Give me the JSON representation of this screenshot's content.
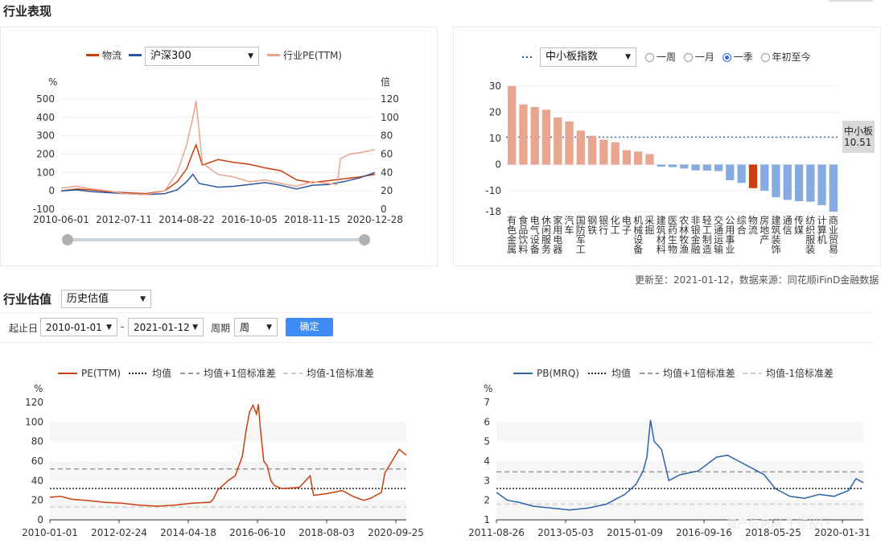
{
  "industry_performance": {
    "title": "行业表现",
    "left_chart": {
      "legend": {
        "series1": "物流",
        "series2_select": "沪深300",
        "series3": "行业PE(TTM)"
      }
    },
    "right_chart": {
      "legend_select": "中小板指数",
      "radios": [
        {
          "label": "一周",
          "selected": false
        },
        {
          "label": "一月",
          "selected": false
        },
        {
          "label": "一季",
          "selected": true
        },
        {
          "label": "年初至今",
          "selected": false
        }
      ],
      "ref_tag_name": "中小板",
      "ref_tag_value": "10.51"
    },
    "update_text": "更新至：2021-01-12，数据来源：同花顺iFinD金融数据"
  },
  "valuation": {
    "title": "行业估值",
    "mode_select": "历史估值",
    "filter": {
      "start_label": "起止日",
      "start_date": "2010-01-01",
      "dash": "-",
      "end_date": "2021-01-12",
      "period_label": "周期",
      "period_value": "周",
      "confirm": "确定"
    }
  },
  "watermark": "资产信息网 千际投行",
  "colors": {
    "logistics": "#c9400c",
    "hs300": "#2d57a0",
    "pe_line": "#e8a58f",
    "bar_pos": "#e8a58f",
    "bar_neg": "#86abe3",
    "bar_hi": "#c9400c",
    "pb_line": "#2d63aa"
  },
  "chart_data": [
    {
      "type": "line",
      "name": "industry-performance",
      "x_ticks": [
        "2010-06-01",
        "2012-07-11",
        "2014-08-22",
        "2016-10-05",
        "2018-11-15",
        "2020-12-28"
      ],
      "ylabel_left": "%",
      "ylabel_right": "倍",
      "ylim_left": [
        -100,
        500
      ],
      "ylim_right": [
        0,
        120
      ],
      "yticks_left": [
        500,
        400,
        300,
        200,
        100,
        0,
        -100
      ],
      "yticks_right": [
        120,
        100,
        80,
        60,
        40,
        20,
        0
      ],
      "series": [
        {
          "name": "物流",
          "axis": "left",
          "color": "#c9400c",
          "points": [
            [
              0,
              0
            ],
            [
              0.05,
              10
            ],
            [
              0.1,
              5
            ],
            [
              0.15,
              -5
            ],
            [
              0.2,
              -10
            ],
            [
              0.27,
              -15
            ],
            [
              0.33,
              0
            ],
            [
              0.37,
              50
            ],
            [
              0.4,
              120
            ],
            [
              0.42,
              210
            ],
            [
              0.43,
              250
            ],
            [
              0.45,
              140
            ],
            [
              0.5,
              170
            ],
            [
              0.55,
              155
            ],
            [
              0.6,
              145
            ],
            [
              0.65,
              125
            ],
            [
              0.7,
              110
            ],
            [
              0.75,
              60
            ],
            [
              0.8,
              45
            ],
            [
              0.85,
              55
            ],
            [
              0.9,
              65
            ],
            [
              0.95,
              75
            ],
            [
              1.0,
              90
            ]
          ]
        },
        {
          "name": "沪深300",
          "axis": "left",
          "color": "#2d57a0",
          "points": [
            [
              0,
              0
            ],
            [
              0.05,
              5
            ],
            [
              0.1,
              -5
            ],
            [
              0.15,
              -10
            ],
            [
              0.2,
              -15
            ],
            [
              0.27,
              -20
            ],
            [
              0.33,
              -15
            ],
            [
              0.37,
              5
            ],
            [
              0.4,
              50
            ],
            [
              0.42,
              90
            ],
            [
              0.44,
              40
            ],
            [
              0.5,
              20
            ],
            [
              0.55,
              25
            ],
            [
              0.6,
              35
            ],
            [
              0.65,
              45
            ],
            [
              0.7,
              30
            ],
            [
              0.75,
              10
            ],
            [
              0.8,
              30
            ],
            [
              0.85,
              35
            ],
            [
              0.9,
              50
            ],
            [
              0.95,
              70
            ],
            [
              1.0,
              100
            ]
          ]
        },
        {
          "name": "行业PE(TTM)",
          "axis": "right",
          "color": "#e8a58f",
          "points": [
            [
              0,
              23
            ],
            [
              0.05,
              25
            ],
            [
              0.1,
              22
            ],
            [
              0.15,
              20
            ],
            [
              0.2,
              17
            ],
            [
              0.27,
              16
            ],
            [
              0.33,
              20
            ],
            [
              0.37,
              40
            ],
            [
              0.4,
              70
            ],
            [
              0.42,
              100
            ],
            [
              0.43,
              118
            ],
            [
              0.45,
              50
            ],
            [
              0.5,
              38
            ],
            [
              0.55,
              35
            ],
            [
              0.6,
              30
            ],
            [
              0.65,
              32
            ],
            [
              0.7,
              28
            ],
            [
              0.75,
              25
            ],
            [
              0.8,
              30
            ],
            [
              0.85,
              28
            ],
            [
              0.88,
              27
            ],
            [
              0.89,
              55
            ],
            [
              0.92,
              60
            ],
            [
              0.96,
              62
            ],
            [
              1.0,
              65
            ]
          ]
        }
      ]
    },
    {
      "type": "bar",
      "name": "industry-ranking",
      "categories": [
        "有色金属",
        "食品饮料",
        "电气设备",
        "休闲服务",
        "家用电器",
        "汽车",
        "国防军工",
        "钢铁",
        "银行",
        "化工",
        "电子",
        "机械设备",
        "采掘",
        "建筑材料",
        "医药生物",
        "农林牧渔",
        "非银金融",
        "轻工制造",
        "交通运输",
        "公用事业",
        "综合",
        "物流",
        "房地产",
        "建筑装饰",
        "通信",
        "传媒",
        "纺织服装",
        "计算机",
        "商业贸易"
      ],
      "category_labels": [
        [
          "有",
          "色",
          "金",
          "属"
        ],
        [
          "食",
          "品",
          "饮",
          "料"
        ],
        [
          "电",
          "气",
          "设",
          "备"
        ],
        [
          "休",
          "闲",
          "服",
          "务"
        ],
        [
          "家",
          "用",
          "电",
          "器"
        ],
        [
          "汽",
          "车"
        ],
        [
          "国",
          "防",
          "军",
          "工"
        ],
        [
          "钢",
          "铁"
        ],
        [
          "银",
          "行"
        ],
        [
          "化",
          "工"
        ],
        [
          "电",
          "子"
        ],
        [
          "机",
          "械",
          "设",
          "备"
        ],
        [
          "采",
          "掘"
        ],
        [
          "建",
          "筑",
          "材",
          "料"
        ],
        [
          "医",
          "药",
          "生",
          "物"
        ],
        [
          "农",
          "林",
          "牧",
          "渔"
        ],
        [
          "非",
          "银",
          "金",
          "融"
        ],
        [
          "轻",
          "工",
          "制",
          "造"
        ],
        [
          "交",
          "通",
          "运",
          "输"
        ],
        [
          "公",
          "用",
          "事",
          "业"
        ],
        [
          "综",
          "合"
        ],
        [
          "物",
          "流"
        ],
        [
          "房",
          "地",
          "产"
        ],
        [
          "建",
          "筑",
          "装",
          "饰"
        ],
        [
          "通",
          "信"
        ],
        [
          "传",
          "媒"
        ],
        [
          "纺",
          "织",
          "服",
          "装"
        ],
        [
          "计",
          "算",
          "机"
        ],
        [
          "商",
          "业",
          "贸",
          "易"
        ]
      ],
      "values": [
        30,
        23,
        22,
        21,
        18,
        16.5,
        13,
        11,
        9.5,
        8.5,
        5.5,
        5,
        4,
        -0.8,
        -1,
        -1.5,
        -2.2,
        -2.3,
        -2.5,
        -6,
        -7,
        -9,
        -10,
        -12.5,
        -13.5,
        -14,
        -14.2,
        -15.5,
        -18
      ],
      "highlight": "物流",
      "yticks": [
        30,
        20,
        10,
        0,
        -10,
        -18
      ],
      "ylim": [
        -18,
        30
      ],
      "reference_line": {
        "name": "中小板指数",
        "value": 10.51
      }
    },
    {
      "type": "line",
      "name": "pe-history",
      "legend": [
        "PE(TTM)",
        "均值",
        "均值+1倍标准差",
        "均值-1倍标准差"
      ],
      "ylabel": "%",
      "ylim": [
        0,
        120
      ],
      "yticks": [
        120,
        100,
        80,
        60,
        40,
        20,
        0
      ],
      "x_ticks": [
        "2010-01-01",
        "2012-02-24",
        "2014-04-18",
        "2016-06-10",
        "2018-08-03",
        "2020-09-25"
      ],
      "mean": 32,
      "upper": 52,
      "lower": 13,
      "points": [
        [
          0,
          23
        ],
        [
          0.03,
          24
        ],
        [
          0.06,
          21
        ],
        [
          0.1,
          20
        ],
        [
          0.15,
          18
        ],
        [
          0.2,
          17
        ],
        [
          0.25,
          15
        ],
        [
          0.3,
          14
        ],
        [
          0.35,
          15
        ],
        [
          0.4,
          17
        ],
        [
          0.45,
          18
        ],
        [
          0.46,
          22
        ],
        [
          0.47,
          30
        ],
        [
          0.5,
          40
        ],
        [
          0.52,
          45
        ],
        [
          0.54,
          65
        ],
        [
          0.55,
          90
        ],
        [
          0.56,
          110
        ],
        [
          0.57,
          117
        ],
        [
          0.58,
          108
        ],
        [
          0.585,
          118
        ],
        [
          0.59,
          95
        ],
        [
          0.6,
          60
        ],
        [
          0.61,
          55
        ],
        [
          0.62,
          40
        ],
        [
          0.63,
          35
        ],
        [
          0.65,
          32
        ],
        [
          0.7,
          33
        ],
        [
          0.73,
          45
        ],
        [
          0.74,
          25
        ],
        [
          0.78,
          27
        ],
        [
          0.82,
          30
        ],
        [
          0.85,
          24
        ],
        [
          0.88,
          20
        ],
        [
          0.9,
          22
        ],
        [
          0.93,
          28
        ],
        [
          0.94,
          48
        ],
        [
          0.96,
          60
        ],
        [
          0.98,
          72
        ],
        [
          1.0,
          66
        ]
      ]
    },
    {
      "type": "line",
      "name": "pb-history",
      "legend": [
        "PB(MRQ)",
        "均值",
        "均值+1倍标准差",
        "均值-1倍标准差"
      ],
      "ylabel": "%",
      "ylim": [
        1,
        7
      ],
      "yticks": [
        7,
        6,
        5,
        4,
        3,
        2,
        1
      ],
      "x_ticks": [
        "2011-08-26",
        "2013-05-03",
        "2015-01-09",
        "2016-09-16",
        "2018-05-25",
        "2020-01-31"
      ],
      "mean": 2.6,
      "upper": 3.45,
      "lower": 1.8,
      "points": [
        [
          0,
          2.4
        ],
        [
          0.03,
          2.0
        ],
        [
          0.06,
          1.9
        ],
        [
          0.1,
          1.7
        ],
        [
          0.15,
          1.6
        ],
        [
          0.2,
          1.5
        ],
        [
          0.25,
          1.6
        ],
        [
          0.3,
          1.8
        ],
        [
          0.35,
          2.3
        ],
        [
          0.38,
          2.8
        ],
        [
          0.4,
          3.5
        ],
        [
          0.41,
          4.2
        ],
        [
          0.42,
          6.1
        ],
        [
          0.43,
          5.0
        ],
        [
          0.45,
          4.6
        ],
        [
          0.47,
          3.0
        ],
        [
          0.5,
          3.3
        ],
        [
          0.55,
          3.5
        ],
        [
          0.6,
          4.2
        ],
        [
          0.63,
          4.3
        ],
        [
          0.67,
          3.9
        ],
        [
          0.7,
          3.6
        ],
        [
          0.73,
          3.3
        ],
        [
          0.76,
          2.6
        ],
        [
          0.8,
          2.2
        ],
        [
          0.84,
          2.1
        ],
        [
          0.88,
          2.3
        ],
        [
          0.92,
          2.2
        ],
        [
          0.96,
          2.5
        ],
        [
          0.98,
          3.1
        ],
        [
          1.0,
          2.9
        ]
      ]
    }
  ]
}
